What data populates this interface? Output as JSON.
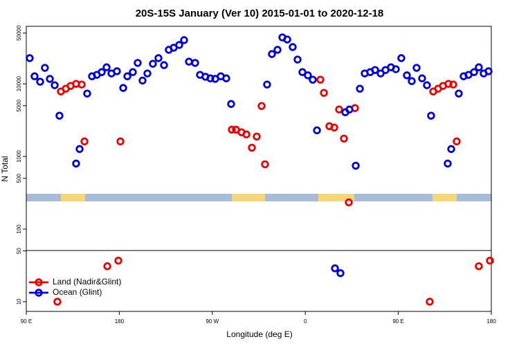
{
  "chart_data": {
    "type": "scatter",
    "title": "20S-15S January (Ver 10)   2015-01-01 to 2020-12-18",
    "x_label": "Longitude (deg E)",
    "y_label": "N Total",
    "log_y": true,
    "legend": "lower left",
    "xlim": [
      90,
      540
    ],
    "xticks": [
      {
        "value": 90,
        "label": "90 E"
      },
      180,
      {
        "value": 270,
        "label": "90 W"
      },
      {
        "value": 360,
        "label": "0"
      },
      {
        "value": 450,
        "label": "90 E"
      },
      {
        "value": 540,
        "label": "180"
      }
    ],
    "ylim": [
      7.35,
      62000
    ],
    "yticks": [
      10,
      50,
      100,
      500,
      1000,
      5000,
      10000,
      50000
    ],
    "series": [
      {
        "name": "Land (Nadir&Glint)",
        "color": "#ee0000",
        "x": [
          120.1,
          123.5,
          128.2,
          132.9,
          138.2,
          143.6,
          146.3,
          168.4,
          179.1,
          181.1,
          288.9,
          292.9,
          298.3,
          303,
          308.3,
          313,
          317.7,
          321,
          374.6,
          378,
          383.3,
          388,
          392.7,
          397.4,
          402.1,
          408.1,
          480.4,
          483.8,
          488.5,
          493.2,
          498.5,
          503.2,
          506.5,
          527.9,
          538.7
        ],
        "values": [
          10,
          7850,
          8570,
          9360,
          10000,
          9780,
          1610,
          30.8,
          36.7,
          1610,
          2340,
          2340,
          2150,
          2010,
          1320,
          1880,
          4950,
          780,
          11400,
          7510,
          2610,
          2500,
          4430,
          1760,
          233,
          4630,
          10,
          7850,
          8570,
          9360,
          10000,
          9780,
          1610,
          30.8,
          36.7
        ]
      },
      {
        "name": "Ocean (Glint)",
        "color": "#0000dd",
        "x": [
          93.3,
          98,
          103.4,
          108,
          112.8,
          117.5,
          122.1,
          138.2,
          141.6,
          148.9,
          153.6,
          158.3,
          163,
          167.7,
          172.4,
          177.7,
          183.8,
          187.8,
          193.1,
          197.8,
          202.5,
          207.2,
          212.5,
          217.9,
          223.3,
          227.9,
          232.6,
          238,
          242.7,
          247.4,
          253.4,
          258.1,
          263.4,
          268.1,
          272.8,
          278.2,
          283.5,
          288.2,
          323,
          327.7,
          333.1,
          337.8,
          342.5,
          347.8,
          352.5,
          357.2,
          362.5,
          367.2,
          371.3,
          388.7,
          394,
          398.7,
          402.7,
          408.8,
          412.8,
          417.5,
          422.8,
          427.5,
          432.9,
          437.6,
          442.9,
          447.6,
          452.9,
          458.3,
          463,
          467.7,
          473,
          477.7,
          481.7,
          497.8,
          501.2,
          508.5,
          513.2,
          517.9,
          523.3,
          527.9,
          532.6,
          537.3
        ],
        "values": [
          22600,
          12700,
          10700,
          16600,
          11700,
          9570,
          3640,
          798,
          1265,
          7350,
          12700,
          13300,
          14500,
          16900,
          13900,
          14900,
          8770,
          12700,
          14500,
          19400,
          11100,
          13900,
          18900,
          22600,
          18100,
          29400,
          31400,
          34300,
          40000,
          20200,
          19400,
          13300,
          12500,
          11900,
          11700,
          12700,
          11900,
          5280,
          9780,
          25700,
          29400,
          43600,
          40800,
          32100,
          21600,
          14500,
          13100,
          11400,
          2290,
          28.8,
          24.7,
          4060,
          4430,
          746,
          8570,
          13900,
          14500,
          15500,
          13900,
          15500,
          16900,
          15900,
          22600,
          13100,
          10900,
          16600,
          11900,
          9570,
          3640,
          798,
          1265,
          7350,
          12700,
          13300,
          14500,
          16900,
          13900,
          14900
        ]
      }
    ]
  }
}
